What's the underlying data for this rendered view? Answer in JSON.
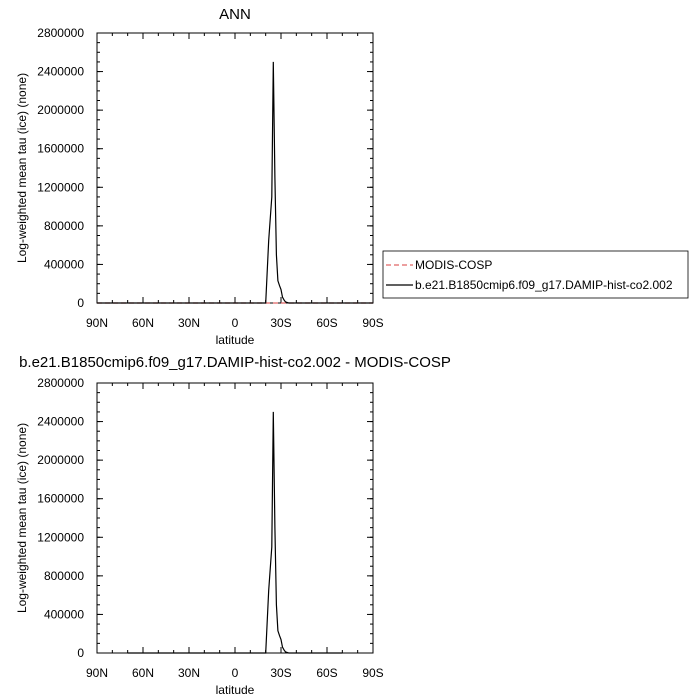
{
  "chart_data": [
    {
      "type": "line",
      "title": "ANN",
      "xlabel": "latitude",
      "ylabel": "Log-weighted mean tau (ice) (none)",
      "xticks": [
        "90N",
        "60N",
        "30N",
        "0",
        "30S",
        "60S",
        "90S"
      ],
      "xlim": [
        90,
        -90
      ],
      "ylim": [
        0,
        2800000
      ],
      "yticks": [
        "0",
        "400000",
        "800000",
        "1200000",
        "1600000",
        "2000000",
        "2400000",
        "2800000"
      ],
      "grid": false,
      "legend_position": "right",
      "series": [
        {
          "name": "MODIS-COSP",
          "color": "#e06666",
          "dash": "dashed",
          "x": [
            90,
            -90
          ],
          "y": [
            0,
            0
          ]
        },
        {
          "name": "b.e21.B1850cmip6.f09_g17.DAMIP-hist-co2.002",
          "color": "#000000",
          "dash": "solid",
          "x": [
            90,
            -20,
            -22,
            -24,
            -25,
            -26,
            -27,
            -28,
            -29,
            -30,
            -31,
            -32,
            -33,
            -35,
            -40,
            -90
          ],
          "y": [
            0,
            0,
            650000,
            1100000,
            2500000,
            1300000,
            500000,
            230000,
            180000,
            140000,
            60000,
            30000,
            10000,
            0,
            0,
            0
          ]
        }
      ]
    },
    {
      "type": "line",
      "title": "b.e21.B1850cmip6.f09_g17.DAMIP-hist-co2.002 - MODIS-COSP",
      "xlabel": "latitude",
      "ylabel": "Log-weighted mean tau (ice) (none)",
      "xticks": [
        "90N",
        "60N",
        "30N",
        "0",
        "30S",
        "60S",
        "90S"
      ],
      "xlim": [
        90,
        -90
      ],
      "ylim": [
        0,
        2800000
      ],
      "yticks": [
        "0",
        "400000",
        "800000",
        "1200000",
        "1600000",
        "2000000",
        "2400000",
        "2800000"
      ],
      "grid": false,
      "series": [
        {
          "color": "#000000",
          "dash": "solid",
          "x": [
            70,
            -20,
            -22,
            -24,
            -25,
            -26,
            -27,
            -28,
            -29,
            -30,
            -31,
            -32,
            -33,
            -35,
            -40,
            -70
          ],
          "y": [
            0,
            0,
            650000,
            1100000,
            2500000,
            1300000,
            500000,
            230000,
            180000,
            140000,
            60000,
            30000,
            10000,
            0,
            0,
            0
          ]
        }
      ]
    }
  ]
}
